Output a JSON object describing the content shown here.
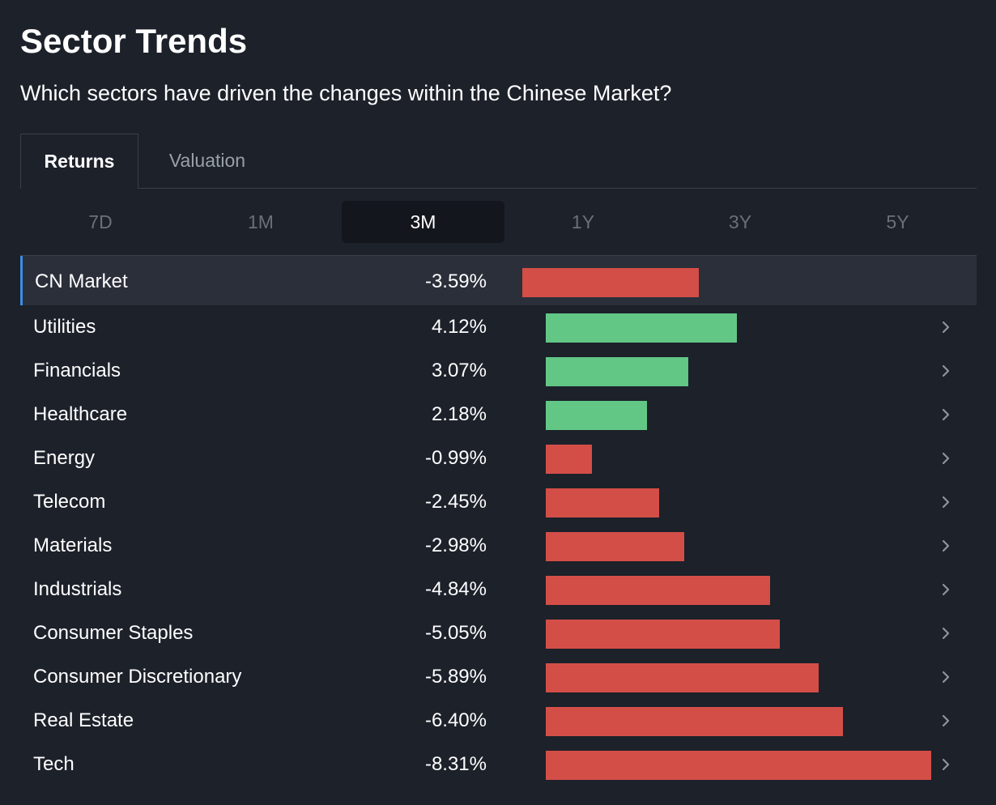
{
  "header": {
    "title": "Sector Trends",
    "subtitle": "Which sectors have driven the changes within the Chinese Market?"
  },
  "tabs": [
    {
      "label": "Returns",
      "active": true
    },
    {
      "label": "Valuation",
      "active": false
    }
  ],
  "periods": [
    {
      "label": "7D",
      "active": false
    },
    {
      "label": "1M",
      "active": false
    },
    {
      "label": "3M",
      "active": true
    },
    {
      "label": "1Y",
      "active": false
    },
    {
      "label": "3Y",
      "active": false
    },
    {
      "label": "5Y",
      "active": false
    }
  ],
  "colors": {
    "positive": "#62c785",
    "negative": "#d44e48",
    "accent": "#3a8ee6"
  },
  "market": {
    "name": "CN Market",
    "value_label": "-3.59%",
    "value": -3.59
  },
  "sectors": [
    {
      "name": "Utilities",
      "value_label": "4.12%",
      "value": 4.12
    },
    {
      "name": "Financials",
      "value_label": "3.07%",
      "value": 3.07
    },
    {
      "name": "Healthcare",
      "value_label": "2.18%",
      "value": 2.18
    },
    {
      "name": "Energy",
      "value_label": "-0.99%",
      "value": -0.99
    },
    {
      "name": "Telecom",
      "value_label": "-2.45%",
      "value": -2.45
    },
    {
      "name": "Materials",
      "value_label": "-2.98%",
      "value": -2.98
    },
    {
      "name": "Industrials",
      "value_label": "-4.84%",
      "value": -4.84
    },
    {
      "name": "Consumer Staples",
      "value_label": "-5.05%",
      "value": -5.05
    },
    {
      "name": "Consumer Discretionary",
      "value_label": "-5.89%",
      "value": -5.89
    },
    {
      "name": "Real Estate",
      "value_label": "-6.40%",
      "value": -6.4
    },
    {
      "name": "Tech",
      "value_label": "-8.31%",
      "value": -8.31
    }
  ]
}
